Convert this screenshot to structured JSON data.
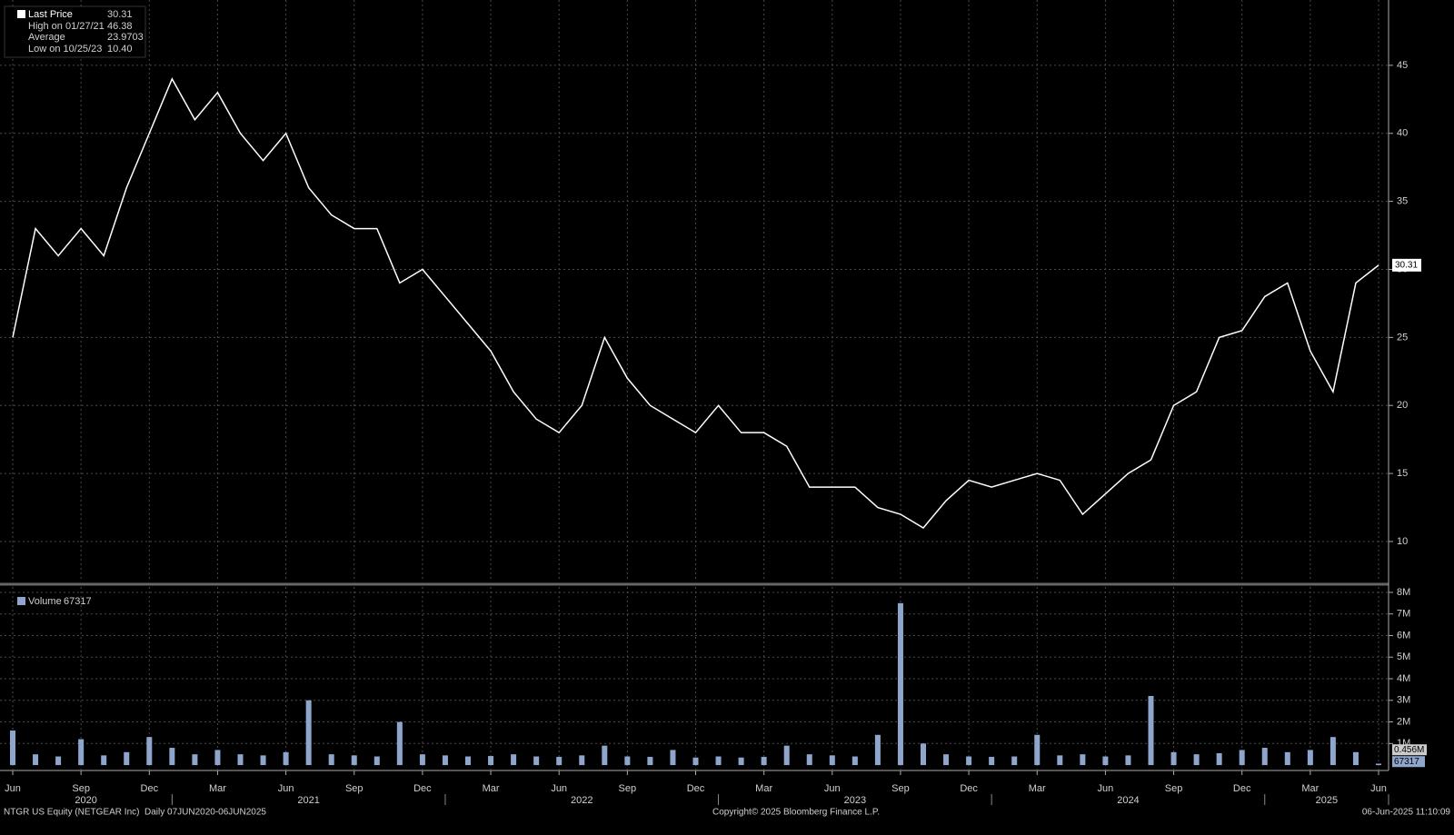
{
  "chart_data": [
    {
      "type": "line",
      "series": [
        {
          "name": "Last Price",
          "color": "#ffffff",
          "values": [
            25,
            33,
            31,
            33,
            31,
            36,
            40,
            44,
            41,
            43,
            40,
            38,
            40,
            36,
            34,
            33,
            33,
            29,
            30,
            28,
            26,
            24,
            21,
            19,
            18,
            20,
            25,
            22,
            20,
            19,
            18,
            20,
            18,
            18,
            17,
            14,
            14,
            14,
            12.5,
            12,
            11,
            13,
            14.5,
            14,
            14.5,
            15,
            14.5,
            12,
            13.5,
            15,
            16,
            20,
            21,
            25,
            25.5,
            28,
            29,
            24,
            21,
            29,
            30.31
          ]
        }
      ],
      "x": [
        "2020-06",
        "2020-07",
        "2020-08",
        "2020-09",
        "2020-10",
        "2020-11",
        "2020-12",
        "2021-01",
        "2021-02",
        "2021-03",
        "2021-04",
        "2021-05",
        "2021-06",
        "2021-07",
        "2021-08",
        "2021-09",
        "2021-10",
        "2021-11",
        "2021-12",
        "2022-01",
        "2022-02",
        "2022-03",
        "2022-04",
        "2022-05",
        "2022-06",
        "2022-07",
        "2022-08",
        "2022-09",
        "2022-10",
        "2022-11",
        "2022-12",
        "2023-01",
        "2023-02",
        "2023-03",
        "2023-04",
        "2023-05",
        "2023-06",
        "2023-07",
        "2023-08",
        "2023-09",
        "2023-10",
        "2023-11",
        "2023-12",
        "2024-01",
        "2024-02",
        "2024-03",
        "2024-04",
        "2024-05",
        "2024-06",
        "2024-07",
        "2024-08",
        "2024-09",
        "2024-10",
        "2024-11",
        "2024-12",
        "2025-01",
        "2025-02",
        "2025-03",
        "2025-04",
        "2025-05",
        "2025-06"
      ],
      "xlim": [
        "2020-06",
        "2025-06"
      ],
      "xticks": [
        {
          "value": "2020-06",
          "label": "Jun"
        },
        {
          "value": "2020-09",
          "label": "Sep"
        },
        {
          "value": "2020-12",
          "label": "Dec"
        },
        {
          "value": "2021-03",
          "label": "Mar"
        },
        {
          "value": "2021-06",
          "label": "Jun"
        },
        {
          "value": "2021-09",
          "label": "Sep"
        },
        {
          "value": "2021-12",
          "label": "Dec"
        },
        {
          "value": "2022-03",
          "label": "Mar"
        },
        {
          "value": "2022-06",
          "label": "Jun"
        },
        {
          "value": "2022-09",
          "label": "Sep"
        },
        {
          "value": "2022-12",
          "label": "Dec"
        },
        {
          "value": "2023-03",
          "label": "Mar"
        },
        {
          "value": "2023-06",
          "label": "Jun"
        },
        {
          "value": "2023-09",
          "label": "Sep"
        },
        {
          "value": "2023-12",
          "label": "Dec"
        },
        {
          "value": "2024-03",
          "label": "Mar"
        },
        {
          "value": "2024-06",
          "label": "Jun"
        },
        {
          "value": "2024-09",
          "label": "Sep"
        },
        {
          "value": "2024-12",
          "label": "Dec"
        },
        {
          "value": "2025-03",
          "label": "Mar"
        },
        {
          "value": "2025-06",
          "label": "Jun"
        }
      ],
      "ylim": [
        7.06,
        49.8
      ],
      "yticks": [
        10,
        15,
        20,
        25,
        30,
        35,
        40,
        45
      ],
      "grid": true,
      "last_value": 30.31,
      "stats": [
        {
          "label": "High on 01/27/21",
          "value": 46.38
        },
        {
          "label": "Average",
          "value": 23.9703
        },
        {
          "label": "Low on 10/25/23",
          "value": {
            "value": 10.4,
            "label": "10.40"
          }
        }
      ]
    },
    {
      "type": "bar",
      "series": [
        {
          "name": "Volume",
          "color": "#8fa6cc",
          "values": [
            1600000,
            500000,
            400000,
            1200000,
            450000,
            600000,
            1300000,
            800000,
            500000,
            700000,
            500000,
            450000,
            600000,
            3000000,
            500000,
            450000,
            400000,
            2000000,
            500000,
            450000,
            400000,
            420000,
            500000,
            400000,
            380000,
            450000,
            900000,
            400000,
            380000,
            700000,
            350000,
            400000,
            350000,
            380000,
            900000,
            500000,
            450000,
            400000,
            1400000,
            7500000,
            1000000,
            500000,
            400000,
            380000,
            400000,
            1400000,
            450000,
            500000,
            400000,
            450000,
            3200000,
            600000,
            500000,
            550000,
            700000,
            800000,
            600000,
            700000,
            1300000,
            600000,
            67317
          ]
        }
      ],
      "x": [
        "2020-06",
        "2020-07",
        "2020-08",
        "2020-09",
        "2020-10",
        "2020-11",
        "2020-12",
        "2021-01",
        "2021-02",
        "2021-03",
        "2021-04",
        "2021-05",
        "2021-06",
        "2021-07",
        "2021-08",
        "2021-09",
        "2021-10",
        "2021-11",
        "2021-12",
        "2022-01",
        "2022-02",
        "2022-03",
        "2022-04",
        "2022-05",
        "2022-06",
        "2022-07",
        "2022-08",
        "2022-09",
        "2022-10",
        "2022-11",
        "2022-12",
        "2023-01",
        "2023-02",
        "2023-03",
        "2023-04",
        "2023-05",
        "2023-06",
        "2023-07",
        "2023-08",
        "2023-09",
        "2023-10",
        "2023-11",
        "2023-12",
        "2024-01",
        "2024-02",
        "2024-03",
        "2024-04",
        "2024-05",
        "2024-06",
        "2024-07",
        "2024-08",
        "2024-09",
        "2024-10",
        "2024-11",
        "2024-12",
        "2025-01",
        "2025-02",
        "2025-03",
        "2025-04",
        "2025-05",
        "2025-06"
      ],
      "xlim": [
        "2020-06",
        "2025-06"
      ],
      "xticks": [
        {
          "value": "2020-06",
          "label": "Jun"
        },
        {
          "value": "2020-09",
          "label": "Sep"
        },
        {
          "value": "2020-12",
          "label": "Dec"
        },
        {
          "value": "2021-03",
          "label": "Mar"
        },
        {
          "value": "2021-06",
          "label": "Jun"
        },
        {
          "value": "2021-09",
          "label": "Sep"
        },
        {
          "value": "2021-12",
          "label": "Dec"
        },
        {
          "value": "2022-03",
          "label": "Mar"
        },
        {
          "value": "2022-06",
          "label": "Jun"
        },
        {
          "value": "2022-09",
          "label": "Sep"
        },
        {
          "value": "2022-12",
          "label": "Dec"
        },
        {
          "value": "2023-03",
          "label": "Mar"
        },
        {
          "value": "2023-06",
          "label": "Jun"
        },
        {
          "value": "2023-09",
          "label": "Sep"
        },
        {
          "value": "2023-12",
          "label": "Dec"
        },
        {
          "value": "2024-03",
          "label": "Mar"
        },
        {
          "value": "2024-06",
          "label": "Jun"
        },
        {
          "value": "2024-09",
          "label": "Sep"
        },
        {
          "value": "2024-12",
          "label": "Dec"
        },
        {
          "value": "2025-03",
          "label": "Mar"
        },
        {
          "value": "2025-06",
          "label": "Jun"
        }
      ],
      "years": [
        2020,
        2021,
        2022,
        2023,
        2024,
        2025
      ],
      "ylim": [
        -250000,
        8250000
      ],
      "yticks": [
        {
          "value": 1000000,
          "label": "1M"
        },
        {
          "value": 2000000,
          "label": "2M"
        },
        {
          "value": 3000000,
          "label": "3M"
        },
        {
          "value": 4000000,
          "label": "4M"
        },
        {
          "value": 5000000,
          "label": "5M"
        },
        {
          "value": 6000000,
          "label": "6M"
        },
        {
          "value": 7000000,
          "label": "7M"
        },
        {
          "value": 8000000,
          "label": "8M"
        }
      ],
      "grid": true,
      "last_value": 67317,
      "average_label": {
        "value": 456000,
        "label": "0.456M"
      }
    }
  ],
  "footer": {
    "left": "NTGR US Equity (NETGEAR Inc)  Daily 07JUN2020-06JUN2025",
    "center": "Copyright© 2025 Bloomberg Finance L.P.",
    "right": "06-Jun-2025 11:10:09"
  }
}
